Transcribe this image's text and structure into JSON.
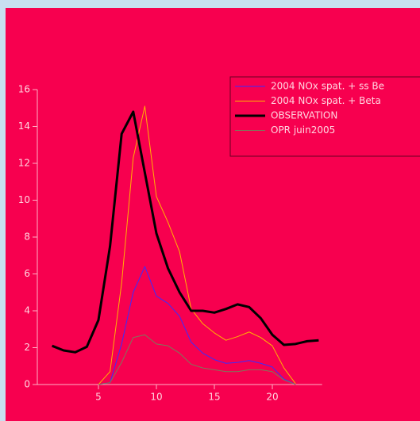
{
  "chart_data": {
    "type": "line",
    "x": [
      1,
      2,
      3,
      4,
      5,
      6,
      7,
      8,
      9,
      10,
      11,
      12,
      13,
      14,
      15,
      16,
      17,
      18,
      19,
      20,
      21,
      22,
      23,
      24
    ],
    "series": [
      {
        "name": "2004 NOx spat. + ss Be",
        "color": "#3a2cff",
        "width": 1,
        "values": [
          null,
          null,
          null,
          null,
          0,
          0.1,
          2.2,
          5.0,
          6.4,
          4.8,
          4.4,
          3.7,
          2.3,
          1.7,
          1.35,
          1.15,
          1.2,
          1.3,
          1.15,
          0.95,
          0.3,
          0,
          null,
          null
        ]
      },
      {
        "name": "2004 NOx spat. + Beta",
        "color": "#ffb400",
        "width": 1,
        "values": [
          null,
          null,
          null,
          null,
          0,
          0.7,
          5.5,
          12.3,
          15.1,
          10.2,
          8.8,
          7.2,
          4.1,
          3.3,
          2.8,
          2.4,
          2.6,
          2.85,
          2.55,
          2.1,
          0.9,
          0.05,
          null,
          null
        ]
      },
      {
        "name": "OBSERVATION",
        "color": "#000000",
        "width": 3,
        "values": [
          2.1,
          1.85,
          1.75,
          2.05,
          3.5,
          7.5,
          13.6,
          14.8,
          11.5,
          8.2,
          6.3,
          5.0,
          4.0,
          4.0,
          3.9,
          4.1,
          4.35,
          4.2,
          3.6,
          2.7,
          2.15,
          2.2,
          2.35,
          2.4
        ]
      },
      {
        "name": "OPR juin2005",
        "color": "#7c7a5a",
        "width": 1,
        "values": [
          null,
          null,
          null,
          null,
          0,
          0.1,
          1.2,
          2.55,
          2.7,
          2.2,
          2.1,
          1.7,
          1.1,
          0.9,
          0.8,
          0.7,
          0.7,
          0.8,
          0.8,
          0.7,
          0.25,
          0,
          null,
          null
        ]
      }
    ],
    "xlim": [
      0,
      24.5
    ],
    "xticks": [
      5,
      10,
      15,
      20
    ],
    "ylim": [
      0,
      16
    ],
    "yticks": [
      0,
      2,
      4,
      6,
      8,
      10,
      12,
      14,
      16
    ]
  }
}
